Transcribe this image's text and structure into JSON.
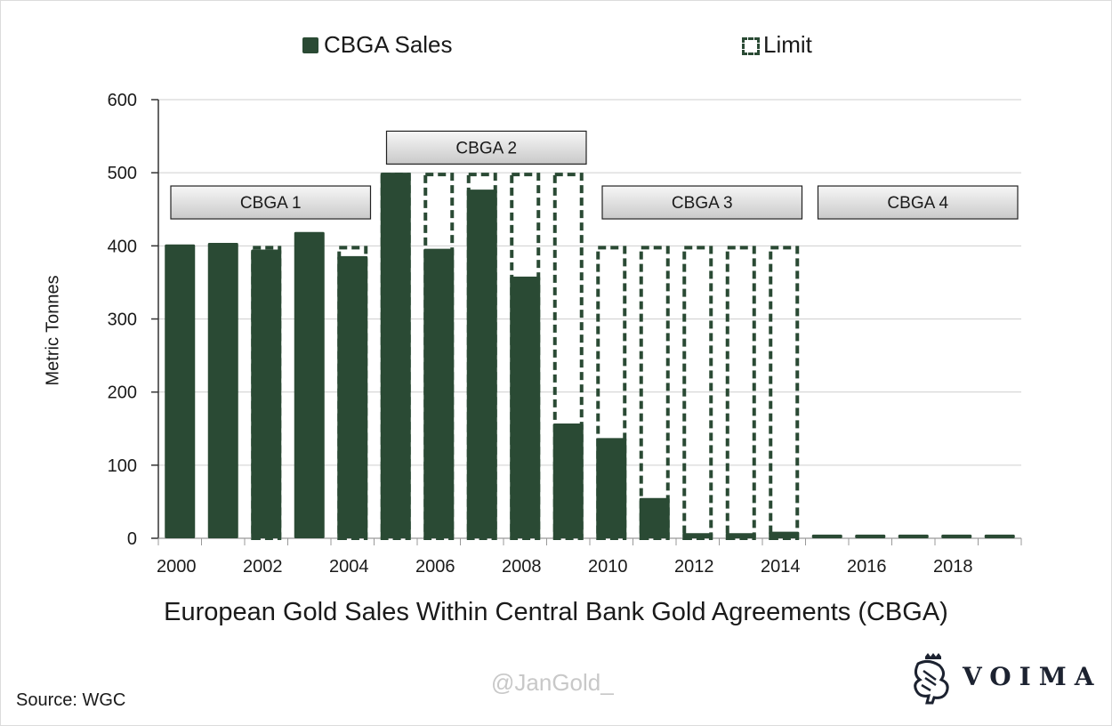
{
  "chart_data": {
    "type": "bar",
    "title": "European Gold Sales Within Central Bank Gold Agreements (CBGA)",
    "xlabel": "",
    "ylabel": "Metric Tonnes",
    "ylim": [
      0,
      600
    ],
    "yticks": [
      "0",
      "100",
      "200",
      "300",
      "400",
      "500",
      "600"
    ],
    "xtick_labels": [
      "2000",
      "2002",
      "2004",
      "2006",
      "2008",
      "2010",
      "2012",
      "2014",
      "2016",
      "2018"
    ],
    "grid": true,
    "legend_position": "top",
    "categories": [
      2000,
      2001,
      2002,
      2003,
      2004,
      2005,
      2006,
      2007,
      2008,
      2009,
      2010,
      2011,
      2012,
      2013,
      2014,
      2015,
      2016,
      2017,
      2018,
      2019
    ],
    "series": [
      {
        "name": "CBGA Sales",
        "style": "solid",
        "color": "#2a4a34",
        "values": [
          402,
          404,
          395,
          419,
          386,
          500,
          396,
          477,
          358,
          157,
          137,
          55,
          7,
          7,
          9,
          5,
          5,
          5,
          5,
          5
        ]
      },
      {
        "name": "Limit",
        "style": "dashed-outline",
        "color": "#2a4a34",
        "values": [
          null,
          null,
          400,
          null,
          400,
          500,
          500,
          500,
          500,
          500,
          400,
          400,
          400,
          400,
          400,
          null,
          null,
          null,
          null,
          null
        ]
      }
    ],
    "annotations": [
      {
        "label": "CBGA 1",
        "from": 2000,
        "to": 2004,
        "y": 460
      },
      {
        "label": "CBGA 2",
        "from": 2005,
        "to": 2009,
        "y": 535
      },
      {
        "label": "CBGA 3",
        "from": 2010,
        "to": 2014,
        "y": 460
      },
      {
        "label": "CBGA 4",
        "from": 2015,
        "to": 2019,
        "y": 460
      }
    ]
  },
  "legend": {
    "sales_label": "CBGA Sales",
    "limit_label": "Limit"
  },
  "footer": {
    "source": "Source: WGC",
    "watermark": "@JanGold_",
    "brand": "VOIMA"
  }
}
